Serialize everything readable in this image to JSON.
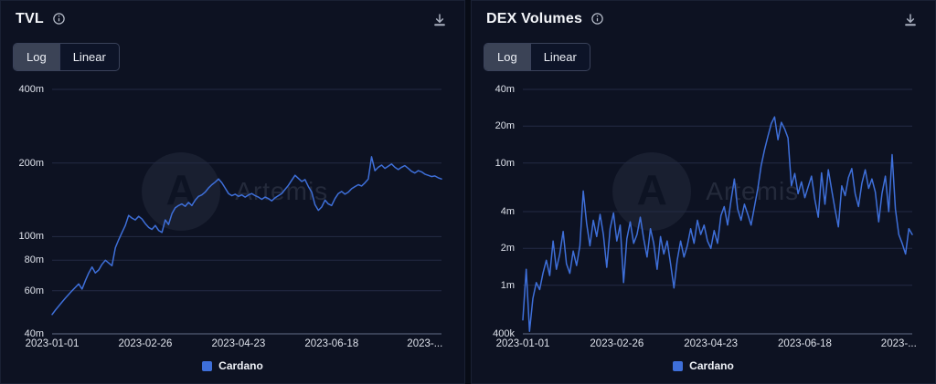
{
  "watermark": {
    "text": "Artemis",
    "glyph": "A"
  },
  "panels": [
    {
      "title": "TVL",
      "toggle": {
        "options": [
          "Log",
          "Linear"
        ],
        "selected": "Log"
      },
      "legend": {
        "label": "Cardano",
        "color": "#3e6fd9"
      }
    },
    {
      "title": "DEX Volumes",
      "toggle": {
        "options": [
          "Log",
          "Linear"
        ],
        "selected": "Log"
      },
      "legend": {
        "label": "Cardano",
        "color": "#3e6fd9"
      }
    }
  ],
  "chart_data": [
    {
      "id": "tvl",
      "type": "line",
      "title": "TVL",
      "series_name": "Cardano",
      "y_scale": "log",
      "x_scale": "time",
      "x_start": "2023-01-01",
      "x_interval_days": 2,
      "x_tick_labels": [
        "2023-01-01",
        "2023-02-26",
        "2023-04-23",
        "2023-06-18",
        "2023-..."
      ],
      "x_tick_days": [
        0,
        56,
        112,
        168,
        224
      ],
      "y_ticks": [
        {
          "label": "400m",
          "value_millions": 400
        },
        {
          "label": "200m",
          "value_millions": 200
        },
        {
          "label": "100m",
          "value_millions": 100
        },
        {
          "label": "80m",
          "value_millions": 80
        },
        {
          "label": "60m",
          "value_millions": 60
        },
        {
          "label": "40m",
          "value_millions": 40
        }
      ],
      "y_domain_millions": [
        40,
        400
      ],
      "grid": true,
      "legend_position": "bottom",
      "values_millions": [
        48,
        50,
        52,
        54,
        56,
        58,
        60,
        62,
        64,
        61,
        66,
        71,
        75,
        71,
        73,
        77,
        80,
        78,
        76,
        90,
        97,
        104,
        111,
        122,
        119,
        117,
        121,
        118,
        113,
        109,
        107,
        111,
        106,
        104,
        117,
        112,
        124,
        131,
        134,
        136,
        133,
        138,
        134,
        141,
        146,
        148,
        152,
        158,
        163,
        167,
        172,
        166,
        158,
        150,
        147,
        149,
        146,
        148,
        145,
        148,
        150,
        147,
        145,
        142,
        145,
        143,
        140,
        144,
        147,
        150,
        156,
        162,
        170,
        178,
        173,
        168,
        171,
        160,
        152,
        135,
        128,
        132,
        141,
        136,
        134,
        143,
        150,
        153,
        149,
        152,
        157,
        160,
        163,
        161,
        166,
        172,
        212,
        186,
        192,
        196,
        190,
        194,
        198,
        192,
        188,
        192,
        195,
        190,
        185,
        182,
        186,
        184,
        180,
        178,
        176,
        177,
        174,
        172
      ]
    },
    {
      "id": "dex-volumes",
      "type": "line",
      "title": "DEX Volumes",
      "series_name": "Cardano",
      "y_scale": "log",
      "x_scale": "time",
      "x_start": "2023-01-01",
      "x_interval_days": 2,
      "x_tick_labels": [
        "2023-01-01",
        "2023-02-26",
        "2023-04-23",
        "2023-06-18",
        "2023-..."
      ],
      "x_tick_days": [
        0,
        56,
        112,
        168,
        224
      ],
      "y_ticks": [
        {
          "label": "40m",
          "value_millions": 40
        },
        {
          "label": "20m",
          "value_millions": 20
        },
        {
          "label": "10m",
          "value_millions": 10
        },
        {
          "label": "4m",
          "value_millions": 4
        },
        {
          "label": "2m",
          "value_millions": 2
        },
        {
          "label": "1m",
          "value_millions": 1
        },
        {
          "label": "400k",
          "value_millions": 0.4
        }
      ],
      "y_domain_millions": [
        0.4,
        40
      ],
      "grid": true,
      "legend_position": "bottom",
      "values_millions": [
        0.52,
        1.35,
        0.42,
        0.78,
        1.05,
        0.92,
        1.25,
        1.6,
        1.2,
        2.3,
        1.35,
        1.8,
        2.75,
        1.5,
        1.25,
        1.9,
        1.45,
        2.1,
        5.9,
        3.2,
        2.1,
        3.4,
        2.5,
        3.8,
        2.6,
        1.4,
        2.9,
        3.9,
        2.3,
        3.1,
        1.05,
        2.4,
        3.3,
        2.2,
        2.6,
        3.6,
        2.4,
        1.7,
        2.9,
        2.2,
        1.35,
        2.5,
        1.8,
        2.3,
        1.5,
        0.95,
        1.6,
        2.3,
        1.7,
        2.1,
        2.9,
        2.2,
        3.4,
        2.6,
        3.1,
        2.3,
        2.0,
        2.8,
        2.2,
        3.7,
        4.4,
        3.1,
        4.9,
        7.4,
        4.2,
        3.4,
        4.6,
        3.8,
        3.1,
        4.4,
        6.2,
        9.5,
        12.8,
        16.5,
        21.0,
        23.8,
        15.5,
        21.5,
        19.0,
        16.0,
        6.5,
        8.2,
        5.6,
        7.0,
        5.2,
        6.4,
        7.8,
        5.0,
        3.6,
        8.3,
        4.6,
        8.8,
        6.0,
        4.2,
        3.0,
        6.5,
        5.4,
        7.6,
        9.0,
        5.6,
        4.4,
        6.8,
        8.8,
        6.2,
        7.4,
        5.8,
        3.3,
        5.6,
        7.8,
        4.0,
        11.7,
        4.2,
        2.6,
        2.2,
        1.8,
        2.9,
        2.6
      ]
    }
  ]
}
